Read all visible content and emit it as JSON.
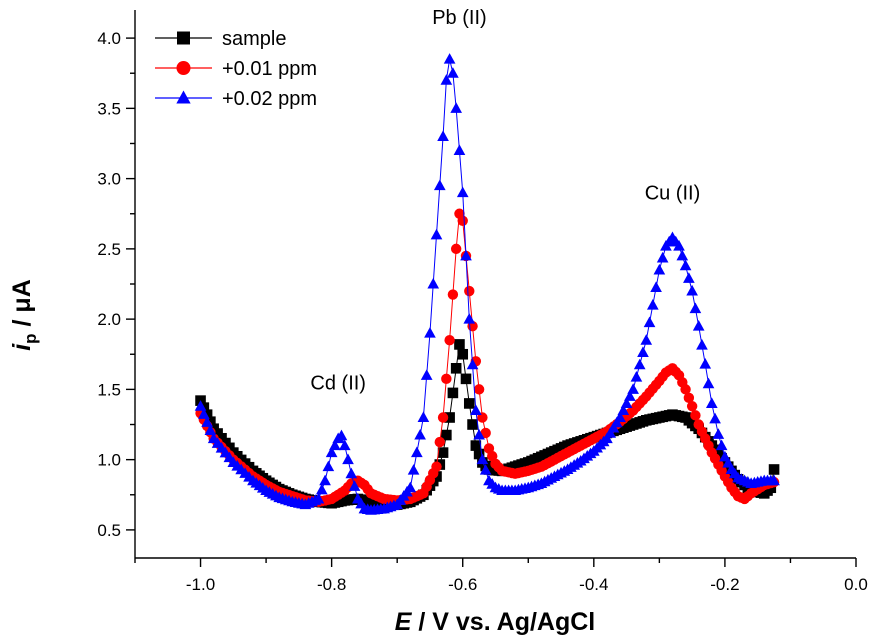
{
  "chart_data": {
    "type": "scatter",
    "title": "",
    "xlabel": {
      "prefix": "E",
      "suffix": " / V vs. Ag/AgCl"
    },
    "ylabel": {
      "prefix": "i",
      "subscript": "p",
      "suffix": " / μA"
    },
    "xlim": [
      -1.1,
      0.0
    ],
    "ylim": [
      0.3,
      4.2
    ],
    "x_ticks": [
      -1.0,
      -0.8,
      -0.6,
      -0.4,
      -0.2,
      0.0
    ],
    "x_tick_labels": [
      "-1.0",
      "-0.8",
      "-0.6",
      "-0.4",
      "-0.2",
      "0.0"
    ],
    "y_ticks": [
      0.5,
      1.0,
      1.5,
      2.0,
      2.5,
      3.0,
      3.5,
      4.0
    ],
    "y_tick_labels": [
      "0.5",
      "1.0",
      "1.5",
      "2.0",
      "2.5",
      "3.0",
      "3.5",
      "4.0"
    ],
    "grid": false,
    "legend_position": "top-left",
    "annotations": [
      {
        "text": "Pb (II)",
        "x": -0.605,
        "y": 4.1
      },
      {
        "text": "Cu (II)",
        "x": -0.28,
        "y": 2.85
      },
      {
        "text": "Cd (II)",
        "x": -0.79,
        "y": 1.5
      }
    ],
    "series": [
      {
        "name": "sample",
        "color": "#000000",
        "marker": "square",
        "x": [
          -1.0,
          -0.98,
          -0.95,
          -0.92,
          -0.9,
          -0.88,
          -0.86,
          -0.84,
          -0.82,
          -0.8,
          -0.78,
          -0.76,
          -0.74,
          -0.72,
          -0.7,
          -0.68,
          -0.66,
          -0.64,
          -0.63,
          -0.62,
          -0.61,
          -0.605,
          -0.6,
          -0.59,
          -0.58,
          -0.57,
          -0.56,
          -0.54,
          -0.52,
          -0.5,
          -0.48,
          -0.46,
          -0.44,
          -0.42,
          -0.4,
          -0.38,
          -0.36,
          -0.34,
          -0.32,
          -0.3,
          -0.28,
          -0.26,
          -0.24,
          -0.22,
          -0.2,
          -0.18,
          -0.16,
          -0.14,
          -0.13,
          -0.125
        ],
        "y": [
          1.42,
          1.22,
          1.05,
          0.92,
          0.85,
          0.79,
          0.75,
          0.72,
          0.7,
          0.69,
          0.71,
          0.72,
          0.7,
          0.68,
          0.68,
          0.7,
          0.75,
          0.88,
          1.05,
          1.3,
          1.65,
          1.82,
          1.75,
          1.4,
          1.1,
          0.98,
          0.93,
          0.92,
          0.95,
          0.98,
          1.02,
          1.06,
          1.1,
          1.13,
          1.16,
          1.19,
          1.22,
          1.25,
          1.28,
          1.3,
          1.32,
          1.3,
          1.22,
          1.1,
          0.98,
          0.86,
          0.78,
          0.76,
          0.8,
          0.93
        ]
      },
      {
        "name": "+0.01 ppm",
        "color": "#ff0000",
        "marker": "circle",
        "x": [
          -1.0,
          -0.98,
          -0.95,
          -0.92,
          -0.9,
          -0.88,
          -0.86,
          -0.84,
          -0.82,
          -0.8,
          -0.78,
          -0.77,
          -0.76,
          -0.75,
          -0.74,
          -0.72,
          -0.7,
          -0.68,
          -0.66,
          -0.64,
          -0.63,
          -0.62,
          -0.61,
          -0.605,
          -0.6,
          -0.59,
          -0.58,
          -0.57,
          -0.56,
          -0.55,
          -0.54,
          -0.52,
          -0.5,
          -0.48,
          -0.46,
          -0.44,
          -0.42,
          -0.4,
          -0.38,
          -0.36,
          -0.34,
          -0.32,
          -0.3,
          -0.29,
          -0.28,
          -0.27,
          -0.26,
          -0.25,
          -0.24,
          -0.22,
          -0.2,
          -0.19,
          -0.18,
          -0.17,
          -0.16,
          -0.14,
          -0.125
        ],
        "y": [
          1.33,
          1.15,
          1.0,
          0.88,
          0.82,
          0.77,
          0.74,
          0.71,
          0.7,
          0.72,
          0.78,
          0.83,
          0.85,
          0.82,
          0.76,
          0.72,
          0.71,
          0.72,
          0.76,
          0.95,
          1.3,
          1.85,
          2.5,
          2.75,
          2.7,
          2.2,
          1.7,
          1.3,
          1.08,
          0.97,
          0.92,
          0.9,
          0.92,
          0.95,
          1.0,
          1.05,
          1.1,
          1.15,
          1.2,
          1.27,
          1.35,
          1.45,
          1.56,
          1.62,
          1.65,
          1.6,
          1.5,
          1.38,
          1.25,
          1.05,
          0.88,
          0.8,
          0.74,
          0.72,
          0.76,
          0.82,
          0.84
        ]
      },
      {
        "name": "+0.02 ppm",
        "color": "#0000ff",
        "marker": "triangle",
        "x": [
          -1.0,
          -0.98,
          -0.95,
          -0.92,
          -0.9,
          -0.88,
          -0.86,
          -0.84,
          -0.82,
          -0.81,
          -0.8,
          -0.79,
          -0.785,
          -0.78,
          -0.77,
          -0.76,
          -0.75,
          -0.74,
          -0.72,
          -0.7,
          -0.68,
          -0.66,
          -0.65,
          -0.64,
          -0.63,
          -0.625,
          -0.62,
          -0.615,
          -0.61,
          -0.6,
          -0.59,
          -0.58,
          -0.57,
          -0.56,
          -0.55,
          -0.54,
          -0.52,
          -0.5,
          -0.48,
          -0.46,
          -0.44,
          -0.42,
          -0.4,
          -0.38,
          -0.36,
          -0.34,
          -0.32,
          -0.31,
          -0.3,
          -0.29,
          -0.28,
          -0.27,
          -0.26,
          -0.25,
          -0.24,
          -0.23,
          -0.22,
          -0.21,
          -0.2,
          -0.19,
          -0.18,
          -0.16,
          -0.14,
          -0.125
        ],
        "y": [
          1.38,
          1.15,
          0.98,
          0.85,
          0.78,
          0.73,
          0.7,
          0.68,
          0.72,
          0.85,
          1.05,
          1.15,
          1.17,
          1.1,
          0.9,
          0.72,
          0.65,
          0.64,
          0.65,
          0.68,
          0.8,
          1.3,
          1.9,
          2.6,
          3.3,
          3.7,
          3.85,
          3.75,
          3.5,
          2.9,
          2.0,
          1.35,
          1.0,
          0.85,
          0.8,
          0.78,
          0.78,
          0.8,
          0.83,
          0.88,
          0.93,
          0.99,
          1.06,
          1.15,
          1.3,
          1.5,
          1.85,
          2.1,
          2.35,
          2.52,
          2.58,
          2.52,
          2.38,
          2.2,
          1.95,
          1.68,
          1.4,
          1.18,
          1.02,
          0.93,
          0.87,
          0.83,
          0.85,
          0.85
        ]
      }
    ]
  }
}
